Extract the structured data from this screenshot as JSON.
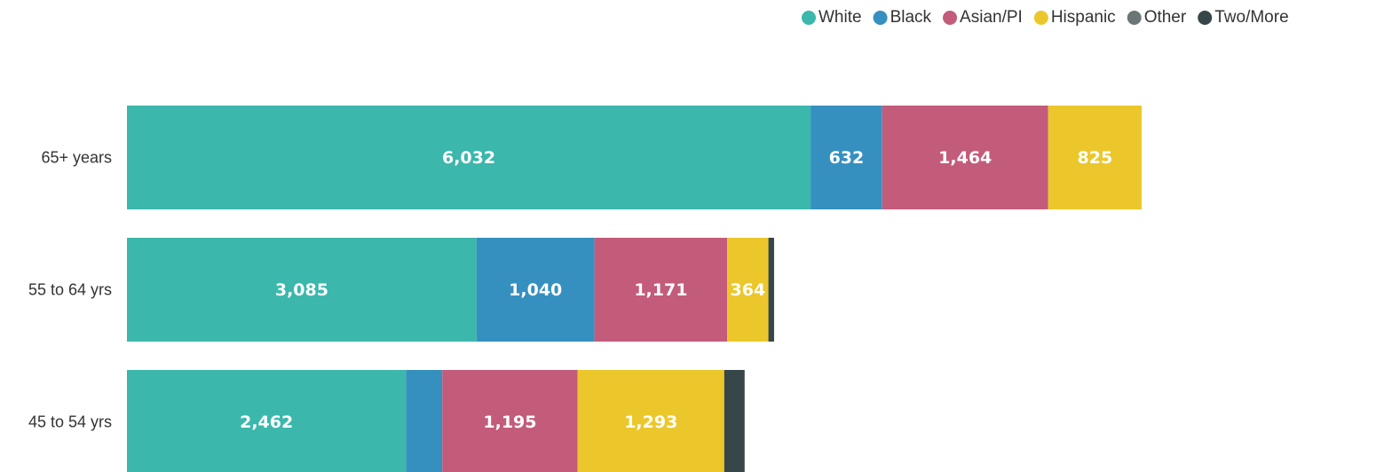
{
  "chart_data": {
    "type": "stacked-barh",
    "categories": [
      "65+ years",
      "55 to 64 yrs",
      "45 to 54 yrs"
    ],
    "series": [
      {
        "name": "White",
        "color": "#3bb7ac",
        "values": [
          6032,
          3085,
          2462
        ],
        "value_labels": [
          "6,032",
          "3,085",
          "2,462"
        ]
      },
      {
        "name": "Black",
        "color": "#3590c0",
        "values": [
          632,
          1040,
          320
        ],
        "value_labels": [
          "632",
          "1,040",
          null
        ]
      },
      {
        "name": "Asian/PI",
        "color": "#c35b7b",
        "values": [
          1464,
          1171,
          1195
        ],
        "value_labels": [
          "1,464",
          "1,171",
          "1,195"
        ]
      },
      {
        "name": "Hispanic",
        "color": "#ecc72b",
        "values": [
          825,
          364,
          1293
        ],
        "value_labels": [
          "825",
          "364",
          "1,293"
        ]
      },
      {
        "name": "Other",
        "color": "#6b7676",
        "values": [
          0,
          0,
          0
        ],
        "value_labels": [
          null,
          null,
          null
        ]
      },
      {
        "name": "Two/More",
        "color": "#374649",
        "values": [
          0,
          50,
          180
        ],
        "value_labels": [
          null,
          null,
          null
        ]
      }
    ],
    "legend": "top-right"
  }
}
